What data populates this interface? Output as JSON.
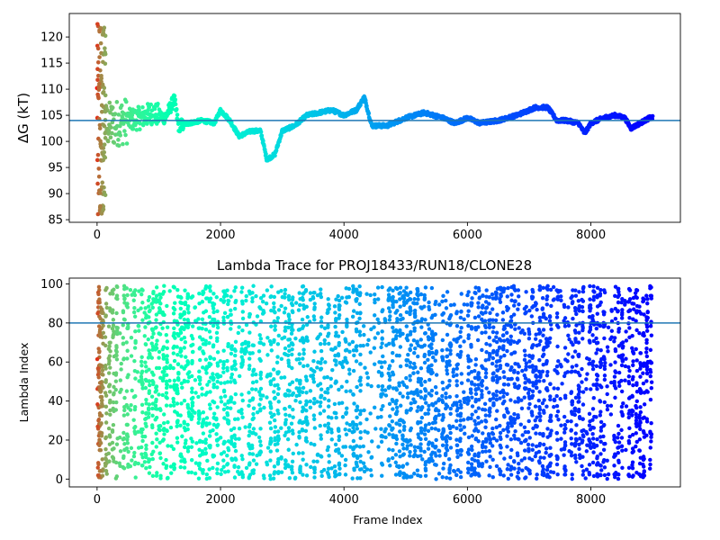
{
  "chart_data": [
    {
      "type": "scatter",
      "title": "",
      "xlabel": "",
      "ylabel": "ΔG (kT)",
      "xlim": [
        -450,
        9450
      ],
      "ylim": [
        84.5,
        124.5
      ],
      "xticks": [
        0,
        2000,
        4000,
        6000,
        8000
      ],
      "yticks": [
        85,
        90,
        95,
        100,
        105,
        110,
        115,
        120
      ],
      "hline": 104.0,
      "hline_color": "#1f77b4",
      "colormap": "rainbow",
      "color_by": "frame index (reversed: early red, late violet)",
      "grid": false,
      "x_range_data": [
        0,
        9000
      ],
      "trend": [
        [
          0,
          104
        ],
        [
          60,
          104
        ],
        [
          150,
          103
        ],
        [
          300,
          103.5
        ],
        [
          500,
          104
        ],
        [
          700,
          104.5
        ],
        [
          900,
          105.5
        ],
        [
          1100,
          104.5
        ],
        [
          1250,
          108
        ],
        [
          1320,
          103
        ],
        [
          1500,
          103.5
        ],
        [
          1700,
          104
        ],
        [
          1900,
          103.5
        ],
        [
          2000,
          106
        ],
        [
          2150,
          104
        ],
        [
          2300,
          101
        ],
        [
          2500,
          102
        ],
        [
          2650,
          102
        ],
        [
          2750,
          96.5
        ],
        [
          2880,
          97.5
        ],
        [
          3000,
          102
        ],
        [
          3200,
          103
        ],
        [
          3400,
          105
        ],
        [
          3600,
          105.5
        ],
        [
          3800,
          106
        ],
        [
          4000,
          105
        ],
        [
          4200,
          106
        ],
        [
          4330,
          108.5
        ],
        [
          4450,
          103
        ],
        [
          4700,
          103
        ],
        [
          5000,
          104.5
        ],
        [
          5300,
          105.5
        ],
        [
          5600,
          104.5
        ],
        [
          5800,
          103.5
        ],
        [
          6000,
          104.5
        ],
        [
          6200,
          103.5
        ],
        [
          6500,
          104
        ],
        [
          6800,
          105
        ],
        [
          7100,
          106.5
        ],
        [
          7300,
          106.5
        ],
        [
          7450,
          104
        ],
        [
          7600,
          104
        ],
        [
          7800,
          103.5
        ],
        [
          7900,
          101.5
        ],
        [
          8000,
          103.5
        ],
        [
          8200,
          104.5
        ],
        [
          8400,
          105
        ],
        [
          8550,
          104.5
        ],
        [
          8650,
          102.5
        ],
        [
          8800,
          103.5
        ],
        [
          8950,
          104.5
        ],
        [
          9000,
          104.5
        ]
      ]
    },
    {
      "type": "scatter",
      "title": "Lambda Trace for PROJ18433/RUN18/CLONE28",
      "xlabel": "Frame Index",
      "ylabel": "Lambda Index",
      "xlim": [
        -450,
        9450
      ],
      "ylim": [
        -4,
        103
      ],
      "xticks": [
        0,
        2000,
        4000,
        6000,
        8000
      ],
      "yticks": [
        0,
        20,
        40,
        60,
        80,
        100
      ],
      "hline": 80,
      "hline_color": "#1f77b4",
      "colormap": "rainbow",
      "color_by": "frame index (reversed: early red, late violet)",
      "grid": false,
      "x_range_data": [
        0,
        9000
      ],
      "y_range_data": [
        0,
        99
      ],
      "columns": 155,
      "points_per_column": 30
    }
  ]
}
